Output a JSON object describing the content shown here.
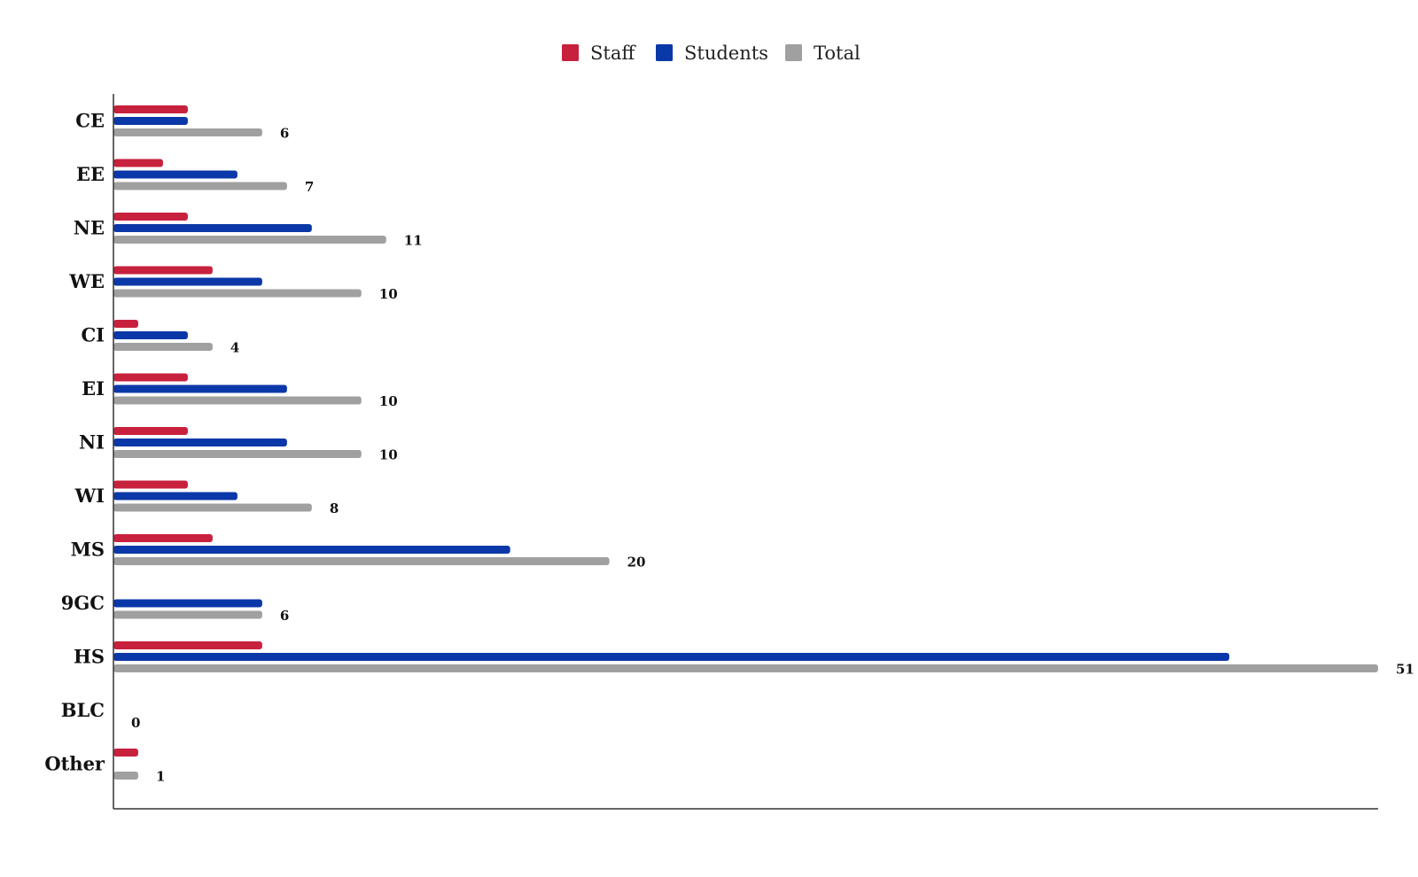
{
  "chart_data": {
    "type": "bar",
    "orientation": "horizontal",
    "categories": [
      "CE",
      "EE",
      "NE",
      "WE",
      "CI",
      "EI",
      "NI",
      "WI",
      "MS",
      "9GC",
      "HS",
      "BLC",
      "Other"
    ],
    "series": [
      {
        "name": "Staff",
        "color": "#c8213e",
        "values": [
          3,
          2,
          3,
          4,
          1,
          3,
          3,
          3,
          4,
          0,
          6,
          0,
          1
        ]
      },
      {
        "name": "Students",
        "color": "#0b38a8",
        "values": [
          3,
          5,
          8,
          6,
          3,
          7,
          7,
          5,
          16,
          6,
          45,
          0,
          0
        ]
      },
      {
        "name": "Total",
        "color": "#a0a0a0",
        "values": [
          6,
          7,
          11,
          10,
          4,
          10,
          10,
          8,
          20,
          6,
          51,
          0,
          1
        ]
      }
    ],
    "data_labels_series": "Total",
    "xlim": [
      0,
      51
    ],
    "grid": false,
    "legend": "top-center",
    "title": "",
    "xlabel": "",
    "ylabel": ""
  }
}
